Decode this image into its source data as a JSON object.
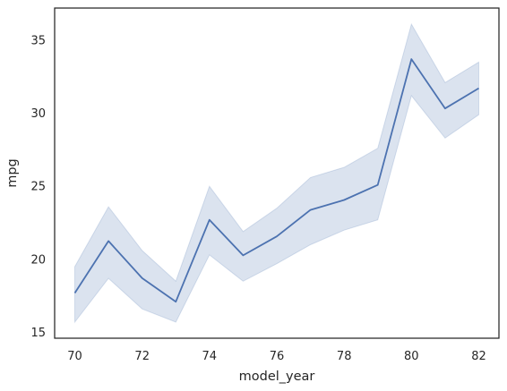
{
  "chart_data": {
    "type": "line",
    "title": "",
    "xlabel": "model_year",
    "ylabel": "mpg",
    "xlim": [
      69.4,
      82.6
    ],
    "ylim": [
      14.6,
      37.2
    ],
    "xticks": [
      70,
      72,
      74,
      76,
      78,
      80,
      82
    ],
    "yticks": [
      15,
      20,
      25,
      30,
      35
    ],
    "grid": false,
    "legend": "none",
    "series": [
      {
        "x": [
          70,
          71,
          72,
          73,
          74,
          75,
          76,
          77,
          78,
          79,
          80,
          81,
          82
        ],
        "y": [
          17.69,
          21.25,
          18.71,
          17.1,
          22.7,
          20.27,
          21.57,
          23.38,
          24.06,
          25.09,
          33.7,
          30.33,
          31.71
        ],
        "ci_lower": [
          15.7,
          18.7,
          16.6,
          15.7,
          20.3,
          18.5,
          19.7,
          21.0,
          22.0,
          22.7,
          31.2,
          28.3,
          29.9
        ],
        "ci_upper": [
          19.5,
          23.6,
          20.6,
          18.5,
          25.0,
          21.9,
          23.5,
          25.6,
          26.3,
          27.6,
          36.1,
          32.1,
          33.5
        ],
        "color": "#4c72b0",
        "band_color": "#4c72b0"
      }
    ]
  }
}
